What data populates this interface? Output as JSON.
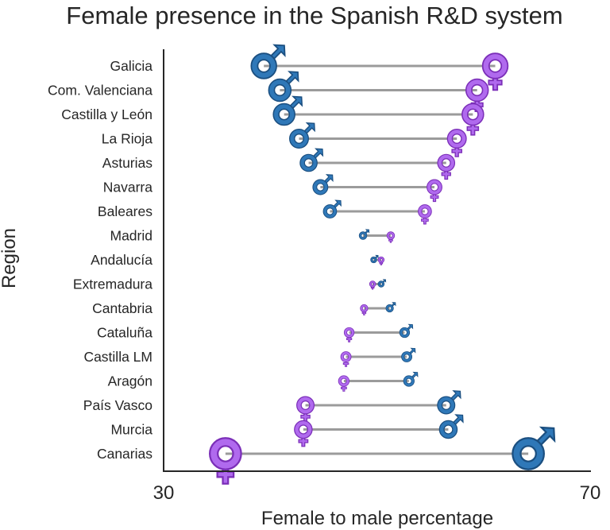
{
  "chart_data": {
    "type": "dumbbell",
    "title": "Female presence in the Spanish R&D system",
    "xlabel": "Female to male percentage",
    "ylabel": "Region",
    "xlim": [
      30,
      70
    ],
    "xticks": [
      30,
      70
    ],
    "grid": false,
    "colors": {
      "male_fill": "#2f78b8",
      "male_stroke": "#1b4f80",
      "female_fill": "#b06aee",
      "female_stroke": "#7b2fb8",
      "connector": "#9b9b9b"
    },
    "series_names": [
      "male",
      "female"
    ],
    "marker_symbols": {
      "male": "♂",
      "female": "♀"
    },
    "regions": [
      {
        "name": "Galicia",
        "male": 39.4,
        "female": 61.1
      },
      {
        "name": "Com. Valenciana",
        "male": 40.9,
        "female": 59.4
      },
      {
        "name": "Castilla y León",
        "male": 41.3,
        "female": 59.0
      },
      {
        "name": "La Rioja",
        "male": 42.7,
        "female": 57.5
      },
      {
        "name": "Asturias",
        "male": 43.6,
        "female": 56.5
      },
      {
        "name": "Navarra",
        "male": 44.7,
        "female": 55.4
      },
      {
        "name": "Baleares",
        "male": 45.6,
        "female": 54.5
      },
      {
        "name": "Madrid",
        "male": 48.7,
        "female": 51.3
      },
      {
        "name": "Andalucía",
        "male": 49.7,
        "female": 50.4
      },
      {
        "name": "Extremadura",
        "male": 50.4,
        "female": 49.6
      },
      {
        "name": "Cantabria",
        "male": 51.2,
        "female": 48.8
      },
      {
        "name": "Cataluña",
        "male": 52.6,
        "female": 47.4
      },
      {
        "name": "Castilla LM",
        "male": 52.8,
        "female": 47.1
      },
      {
        "name": "Aragón",
        "male": 53.0,
        "female": 46.9
      },
      {
        "name": "País Vasco",
        "male": 56.5,
        "female": 43.3
      },
      {
        "name": "Murcia",
        "male": 56.7,
        "female": 43.1
      },
      {
        "name": "Canarias",
        "male": 64.2,
        "female": 35.8
      }
    ]
  }
}
